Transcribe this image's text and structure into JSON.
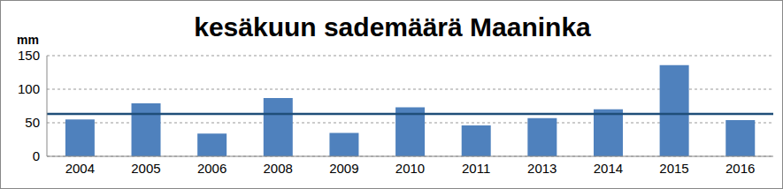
{
  "chart_data": {
    "type": "bar",
    "title": "kesäkuun sademäärä Maaninka",
    "y_label": "mm",
    "categories": [
      "2004",
      "2005",
      "2006",
      "2008",
      "2009",
      "2010",
      "2011",
      "2013",
      "2014",
      "2015",
      "2016"
    ],
    "values": [
      55,
      79,
      34,
      87,
      35,
      73,
      46,
      57,
      70,
      136,
      54
    ],
    "color": "#4f81bd",
    "reference_line": 63,
    "ylim": [
      0,
      150
    ],
    "yticks": [
      0,
      50,
      100,
      150
    ],
    "grid": true
  }
}
